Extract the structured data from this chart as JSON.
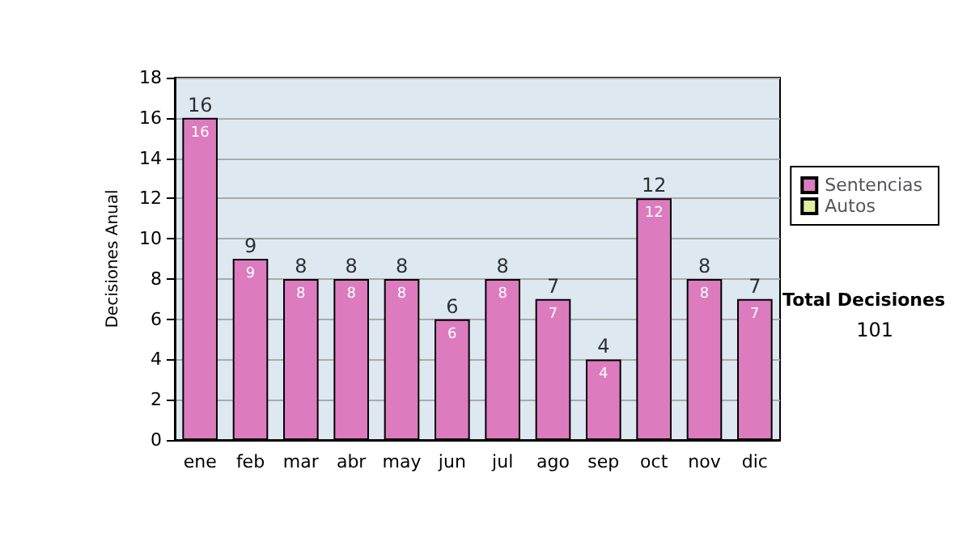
{
  "chart_data": {
    "type": "bar",
    "ylabel": "Decisiones Anual",
    "categories": [
      "ene",
      "feb",
      "mar",
      "abr",
      "may",
      "jun",
      "jul",
      "ago",
      "sep",
      "oct",
      "nov",
      "dic"
    ],
    "series": [
      {
        "name": "Sentencias",
        "color": "#dd7bbf",
        "values": [
          16,
          9,
          8,
          8,
          8,
          6,
          8,
          7,
          4,
          12,
          8,
          7
        ],
        "value_labels": [
          "16",
          "9",
          "8",
          "8",
          "8",
          "6",
          "8",
          "7",
          "4",
          "12",
          "8",
          "7"
        ]
      },
      {
        "name": "Autos",
        "color": "#e0eea0",
        "values": [
          0,
          0,
          0,
          0,
          0,
          0,
          0,
          0,
          0,
          0,
          0,
          0
        ],
        "value_labels": [
          null,
          null,
          null,
          null,
          null,
          null,
          null,
          null,
          null,
          null,
          null,
          null
        ]
      }
    ],
    "stacked": true,
    "totals": [
      "16",
      "9",
      "8",
      "8",
      "8",
      "6",
      "8",
      "7",
      "4",
      "12",
      "8",
      "7"
    ],
    "ylim": [
      0,
      18
    ],
    "yticks": [
      0,
      2,
      4,
      6,
      8,
      10,
      12,
      14,
      16,
      18
    ],
    "grid": "y",
    "legend": "right",
    "annotations": [
      "Total Decisiones",
      "101"
    ]
  }
}
